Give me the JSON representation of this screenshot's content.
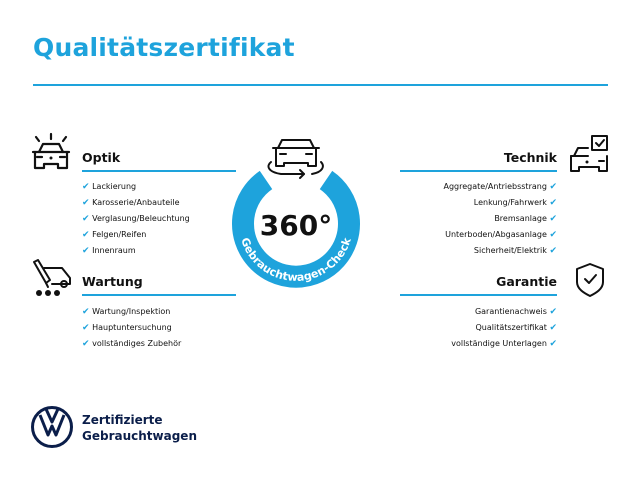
{
  "title": "Qualitätszertifikat",
  "accent_color": "#1ea3dc",
  "center": {
    "label": "360°",
    "ring_text": "Gebrauchtwagen-Check",
    "icon": "car-rotate-icon"
  },
  "sections": {
    "optik": {
      "heading": "Optik",
      "icon": "car-lights-icon",
      "items": [
        "Lackierung",
        "Karosserie/Anbauteile",
        "Verglasung/Beleuchtung",
        "Felgen/Reifen",
        "Innenraum"
      ]
    },
    "wartung": {
      "heading": "Wartung",
      "icon": "service-tools-icon",
      "items": [
        "Wartung/Inspektion",
        "Hauptuntersuchung",
        "vollständiges Zubehör"
      ]
    },
    "technik": {
      "heading": "Technik",
      "icon": "car-checklist-icon",
      "items": [
        "Aggregate/Antriebsstrang",
        "Lenkung/Fahrwerk",
        "Bremsanlage",
        "Unterboden/Abgasanlage",
        "Sicherheit/Elektrik"
      ]
    },
    "garantie": {
      "heading": "Garantie",
      "icon": "shield-check-icon",
      "items": [
        "Garantienachweis",
        "Qualitätszertifikat",
        "vollständige Unterlagen"
      ]
    }
  },
  "check_glyph": "✔",
  "brand": {
    "line1": "Zertifizierte",
    "line2": "Gebrauchtwagen",
    "logo": "vw-logo"
  }
}
